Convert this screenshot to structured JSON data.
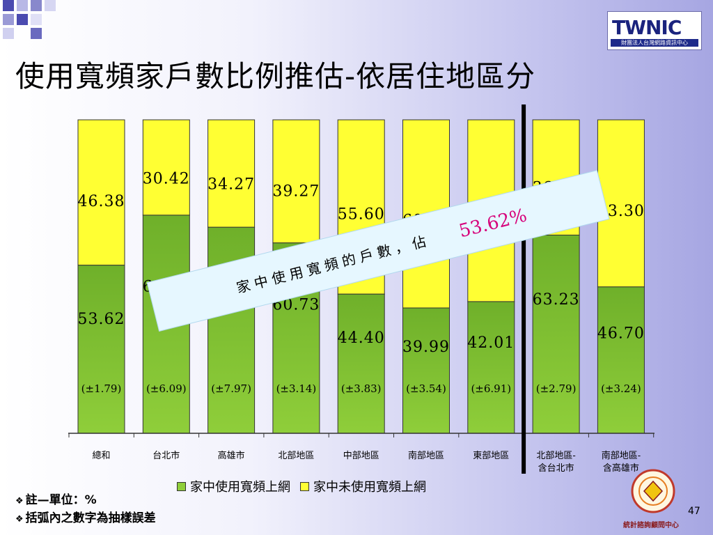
{
  "slide": {
    "title": "使用寬頻家戶數比例推估-依居住地區分",
    "logo_text": "TWNIC",
    "logo_subtext": "財團法人台灣網路資訊中心",
    "page_number": "47",
    "badge_text": "統計諮詢顧問中心",
    "callout_prefix": "家中使用寬頻的戶數，佔",
    "callout_value": "53.62%",
    "notes": [
      "註—單位：%",
      "括弧內之數字為抽樣誤差"
    ],
    "colors": {
      "used": "#8fce3a",
      "unused": "#ffff33",
      "callout_bg": "#e6f7ff",
      "callout_value": "#d6007a"
    }
  },
  "chart_data": {
    "type": "bar",
    "stacked": true,
    "categories": [
      "總和",
      "台北市",
      "高雄市",
      "北部地區",
      "中部地區",
      "南部地區",
      "東部地區",
      "北部地區-含台北市",
      "南部地區-含高雄市"
    ],
    "category_lines": [
      [
        "總和"
      ],
      [
        "台北市"
      ],
      [
        "高雄市"
      ],
      [
        "北部地區"
      ],
      [
        "中部地區"
      ],
      [
        "南部地區"
      ],
      [
        "東部地區"
      ],
      [
        "北部地區-",
        "含台北市"
      ],
      [
        "南部地區-",
        "含高雄市"
      ]
    ],
    "series": [
      {
        "name": "家中使用寬頻上網",
        "values": [
          53.62,
          69.58,
          65.73,
          60.73,
          44.4,
          39.99,
          42.01,
          63.23,
          46.7
        ],
        "labels": [
          "53.62",
          "69.58",
          "65.73",
          "60.73",
          "44.40",
          "39.99",
          "42.01",
          "63.23",
          "46.70"
        ]
      },
      {
        "name": "家中未使用寬頻上網",
        "values": [
          46.38,
          30.42,
          34.27,
          39.27,
          55.6,
          60.01,
          57.99,
          36.77,
          53.3
        ],
        "labels": [
          "46.38",
          "30.42",
          "34.27",
          "39.27",
          "55.60",
          "60.01",
          "57.99",
          "36.77",
          "53.30"
        ]
      }
    ],
    "error_labels": [
      "(±1.79)",
      "(±6.09)",
      "(±7.97)",
      "(±3.14)",
      "(±3.83)",
      "(±3.54)",
      "(±6.91)",
      "(±2.79)",
      "(±3.24)"
    ],
    "ylim": [
      0,
      100
    ],
    "grid": false,
    "legend_position": "bottom",
    "divider_after_index": 6
  }
}
